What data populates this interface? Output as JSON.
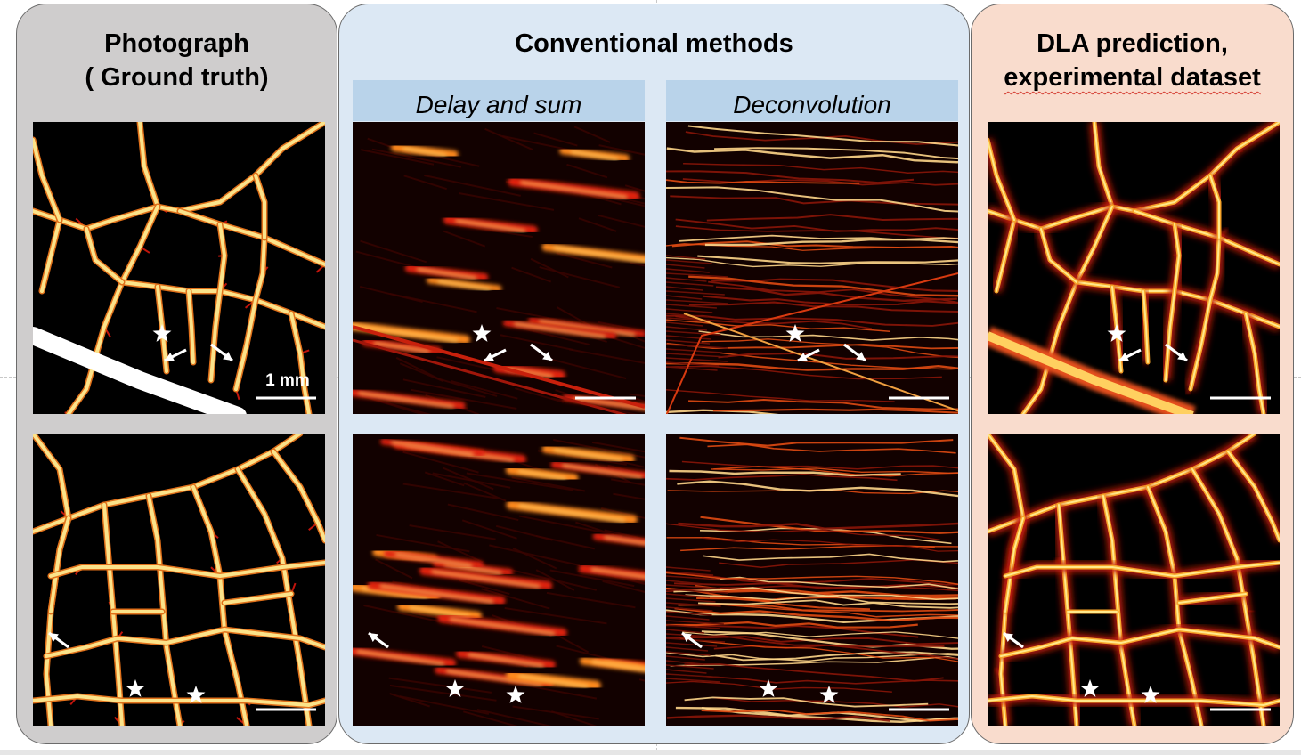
{
  "columns": {
    "ground_truth": {
      "title_line1": "Photograph",
      "title_line2": "( Ground truth)"
    },
    "conventional": {
      "title": "Conventional methods",
      "delay_and_sum": "Delay and sum",
      "deconvolution": "Deconvolution"
    },
    "dla": {
      "title_line1": "DLA prediction,",
      "title_line2": "experimental dataset"
    }
  },
  "scale_bar_label": "1 mm",
  "colors": {
    "ground_truth_panel": "#cfcdcd",
    "conventional_panel": "#dce8f4",
    "subheader": "#b9d3ea",
    "dla_panel": "#f9dccd",
    "vessel_hot": "#ffffff",
    "vessel_warm": "#f9b233",
    "vessel_red": "#c0140c"
  },
  "markers": [
    "star-icon",
    "arrow-icon"
  ]
}
